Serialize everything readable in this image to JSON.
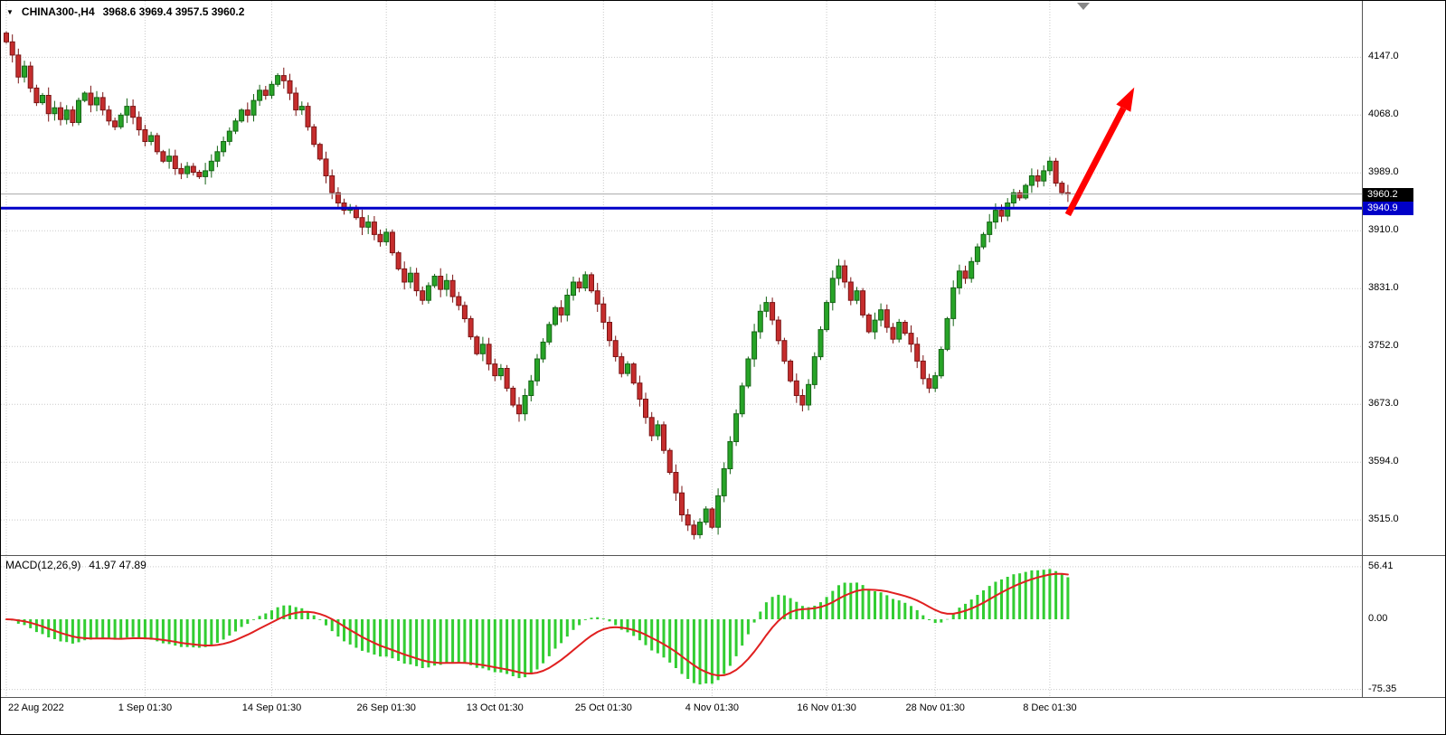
{
  "header": {
    "dropdown_icon": "▼",
    "symbol_timeframe": "CHINA300-,H4",
    "ohlc": "3968.6 3969.4 3957.5 3960.2"
  },
  "price_scale": {
    "grid_labels": [
      "4147.0",
      "4068.0",
      "3989.0",
      "3910.0",
      "3831.0",
      "3752.0",
      "3673.0",
      "3594.0",
      "3515.0"
    ],
    "current_badge": "3960.2",
    "line_badge": "3940.9",
    "current_badge_bg": "#000000",
    "line_badge_bg": "#0000C8"
  },
  "macd_panel": {
    "label": "MACD(12,26,9)",
    "values": "41.97 47.89",
    "axis_labels": [
      "56.41",
      "0.00",
      "-75.35"
    ]
  },
  "colors": {
    "bull": "#27A427",
    "bull_dark": "#156315",
    "bear": "#C62D2D",
    "bear_dark": "#7A1414",
    "grid": "#c9c9c9",
    "separator": "#555555",
    "bid_line": "#a8a8a8",
    "macd_hist": "#32CD32",
    "macd_signal": "#E02020",
    "shift_marker": "#888888"
  },
  "chart_data": {
    "type": "candlestick",
    "symbol": "CHINA300-",
    "timeframe": "H4",
    "title": "CHINA300-,H4",
    "ohlc_current": {
      "open": 3968.6,
      "high": 3969.4,
      "low": 3957.5,
      "close": 3960.2
    },
    "ylim": [
      3467,
      4224
    ],
    "grid_prices": [
      4147,
      4068,
      3989,
      3910,
      3831,
      3752,
      3673,
      3594,
      3515
    ],
    "current_price": 3960.2,
    "hline": {
      "price": 3940.9,
      "color": "#0000C8"
    },
    "arrow": {
      "from_index": 176,
      "from_price": 3932,
      "to_index": 187,
      "to_price": 4106,
      "color": "#FF0000"
    },
    "x_ticks": [
      {
        "label": "22 Aug 2022",
        "index": 0
      },
      {
        "label": "1 Sep 01:30",
        "index": 23
      },
      {
        "label": "14 Sep 01:30",
        "index": 44
      },
      {
        "label": "26 Sep 01:30",
        "index": 63
      },
      {
        "label": "13 Oct 01:30",
        "index": 81
      },
      {
        "label": "25 Oct 01:30",
        "index": 99
      },
      {
        "label": "4 Nov 01:30",
        "index": 117
      },
      {
        "label": "16 Nov 01:30",
        "index": 136
      },
      {
        "label": "28 Nov 01:30",
        "index": 154
      },
      {
        "label": "8 Dec 01:30",
        "index": 173
      }
    ],
    "wick": 7,
    "closes": [
      4168,
      4150,
      4120,
      4135,
      4105,
      4085,
      4095,
      4070,
      4078,
      4062,
      4075,
      4058,
      4088,
      4098,
      4082,
      4092,
      4075,
      4060,
      4052,
      4068,
      4080,
      4065,
      4048,
      4032,
      4040,
      4018,
      4005,
      4012,
      3995,
      3988,
      3998,
      3990,
      3984,
      3992,
      4005,
      4018,
      4032,
      4046,
      4060,
      4075,
      4068,
      4088,
      4102,
      4095,
      4110,
      4122,
      4115,
      4098,
      4075,
      4080,
      4052,
      4028,
      4008,
      3985,
      3962,
      3948,
      3938,
      3942,
      3928,
      3915,
      3922,
      3905,
      3895,
      3908,
      3880,
      3858,
      3840,
      3852,
      3828,
      3815,
      3835,
      3848,
      3830,
      3842,
      3820,
      3808,
      3790,
      3765,
      3742,
      3755,
      3728,
      3712,
      3722,
      3695,
      3672,
      3660,
      3685,
      3705,
      3735,
      3758,
      3782,
      3805,
      3795,
      3822,
      3840,
      3832,
      3850,
      3828,
      3810,
      3785,
      3760,
      3738,
      3715,
      3728,
      3702,
      3680,
      3655,
      3630,
      3645,
      3610,
      3580,
      3552,
      3522,
      3508,
      3495,
      3512,
      3530,
      3505,
      3548,
      3585,
      3622,
      3660,
      3698,
      3735,
      3772,
      3800,
      3812,
      3788,
      3760,
      3732,
      3705,
      3685,
      3672,
      3700,
      3738,
      3775,
      3812,
      3845,
      3862,
      3840,
      3815,
      3828,
      3795,
      3772,
      3788,
      3802,
      3778,
      3762,
      3785,
      3770,
      3755,
      3732,
      3708,
      3695,
      3712,
      3748,
      3790,
      3832,
      3855,
      3845,
      3868,
      3888,
      3905,
      3922,
      3938,
      3930,
      3948,
      3962,
      3955,
      3972,
      3985,
      3978,
      3992,
      4005,
      3975,
      3962,
      3960.2
    ],
    "macd": {
      "params": [
        12,
        26,
        9
      ],
      "last_main": 41.97,
      "last_signal": 47.89,
      "axis": [
        56.41,
        0.0,
        -75.35
      ]
    }
  }
}
